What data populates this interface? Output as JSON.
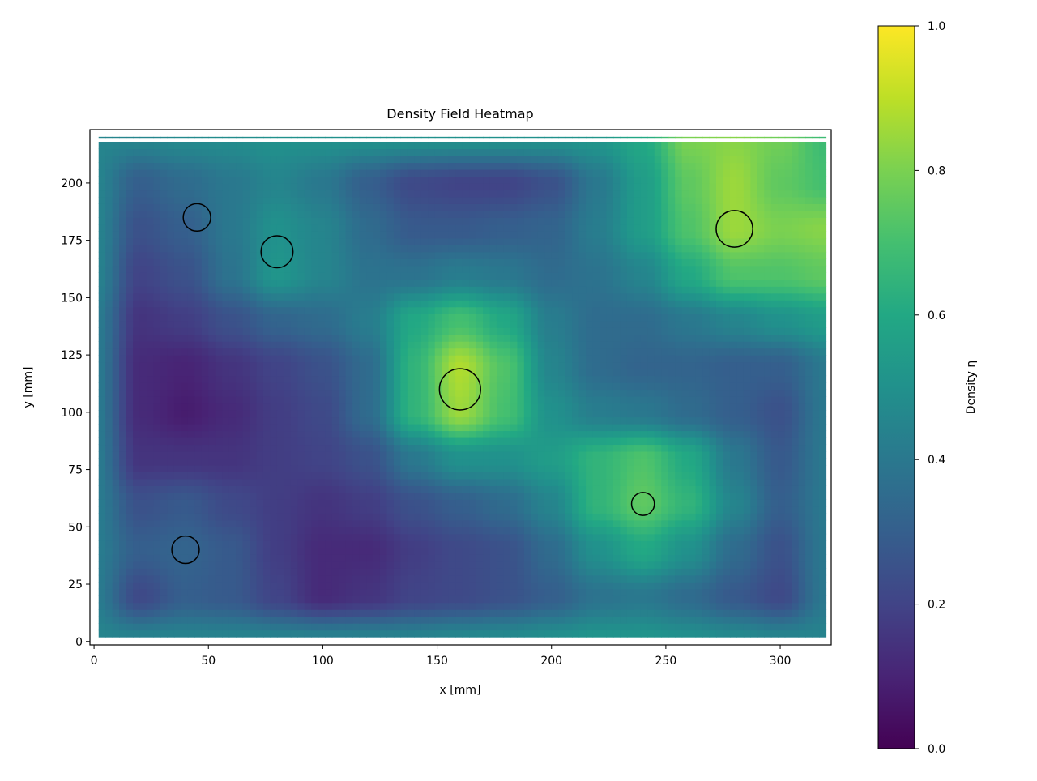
{
  "chart_data": {
    "type": "heatmap",
    "title": "Density Field Heatmap",
    "xlabel": "x [mm]",
    "ylabel": "y [mm]",
    "xlim": [
      -1.8,
      322.3
    ],
    "ylim": [
      -1.5,
      223.3
    ],
    "xticks": [
      0,
      50,
      100,
      150,
      200,
      250,
      300
    ],
    "yticks": [
      0,
      25,
      50,
      75,
      100,
      125,
      150,
      175,
      200
    ],
    "colormap": "viridis",
    "colorbar": {
      "label": "Density η",
      "range": [
        0,
        1
      ],
      "ticks": [
        "0.0",
        "0.2",
        "0.4",
        "0.6",
        "0.8",
        "1.0"
      ]
    },
    "field_extent": {
      "x": [
        2,
        320
      ],
      "y": [
        2,
        220
      ]
    },
    "grid_x": [
      0,
      20,
      40,
      60,
      80,
      100,
      120,
      140,
      160,
      180,
      200,
      220,
      240,
      260,
      280,
      300,
      320
    ],
    "grid_y": [
      0,
      20,
      40,
      60,
      80,
      100,
      120,
      140,
      160,
      180,
      200,
      220
    ],
    "values": [
      [
        0.45,
        0.45,
        0.45,
        0.45,
        0.45,
        0.45,
        0.45,
        0.45,
        0.47,
        0.48,
        0.5,
        0.52,
        0.52,
        0.5,
        0.48,
        0.46,
        0.45
      ],
      [
        0.42,
        0.22,
        0.3,
        0.28,
        0.2,
        0.12,
        0.15,
        0.2,
        0.22,
        0.25,
        0.3,
        0.38,
        0.4,
        0.35,
        0.28,
        0.22,
        0.4
      ],
      [
        0.42,
        0.3,
        0.32,
        0.28,
        0.18,
        0.12,
        0.12,
        0.18,
        0.22,
        0.25,
        0.35,
        0.5,
        0.6,
        0.5,
        0.35,
        0.25,
        0.4
      ],
      [
        0.42,
        0.25,
        0.28,
        0.22,
        0.18,
        0.15,
        0.18,
        0.25,
        0.3,
        0.35,
        0.45,
        0.65,
        0.75,
        0.65,
        0.45,
        0.3,
        0.4
      ],
      [
        0.42,
        0.15,
        0.15,
        0.15,
        0.18,
        0.2,
        0.25,
        0.4,
        0.5,
        0.5,
        0.55,
        0.65,
        0.72,
        0.6,
        0.4,
        0.28,
        0.4
      ],
      [
        0.42,
        0.12,
        0.08,
        0.12,
        0.18,
        0.22,
        0.35,
        0.65,
        0.85,
        0.7,
        0.5,
        0.42,
        0.4,
        0.35,
        0.3,
        0.25,
        0.4
      ],
      [
        0.42,
        0.12,
        0.1,
        0.15,
        0.2,
        0.25,
        0.35,
        0.65,
        0.88,
        0.72,
        0.45,
        0.35,
        0.32,
        0.32,
        0.3,
        0.3,
        0.4
      ],
      [
        0.42,
        0.15,
        0.18,
        0.25,
        0.32,
        0.35,
        0.42,
        0.6,
        0.7,
        0.6,
        0.42,
        0.35,
        0.35,
        0.4,
        0.45,
        0.5,
        0.55
      ],
      [
        0.45,
        0.2,
        0.25,
        0.38,
        0.52,
        0.45,
        0.38,
        0.38,
        0.42,
        0.4,
        0.35,
        0.38,
        0.45,
        0.6,
        0.72,
        0.72,
        0.75
      ],
      [
        0.45,
        0.25,
        0.3,
        0.4,
        0.5,
        0.45,
        0.35,
        0.28,
        0.28,
        0.3,
        0.32,
        0.42,
        0.55,
        0.72,
        0.85,
        0.8,
        0.82
      ],
      [
        0.45,
        0.3,
        0.35,
        0.4,
        0.45,
        0.4,
        0.3,
        0.22,
        0.2,
        0.2,
        0.25,
        0.4,
        0.55,
        0.75,
        0.85,
        0.75,
        0.7
      ],
      [
        0.45,
        0.45,
        0.47,
        0.48,
        0.5,
        0.5,
        0.5,
        0.5,
        0.5,
        0.5,
        0.5,
        0.52,
        0.6,
        0.8,
        0.82,
        0.78,
        0.68
      ]
    ],
    "circles": [
      {
        "x": 45,
        "y": 185,
        "r": 6
      },
      {
        "x": 80,
        "y": 170,
        "r": 7
      },
      {
        "x": 280,
        "y": 180,
        "r": 8
      },
      {
        "x": 160,
        "y": 110,
        "r": 9
      },
      {
        "x": 240,
        "y": 60,
        "r": 5
      },
      {
        "x": 40,
        "y": 40,
        "r": 6
      }
    ]
  }
}
